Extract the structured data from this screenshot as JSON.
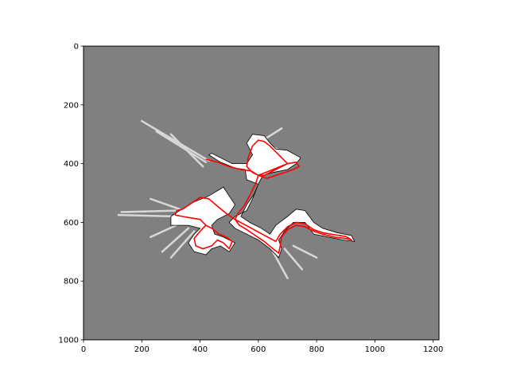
{
  "chart_data": {
    "type": "heatmap",
    "title": "",
    "xlabel": "",
    "ylabel": "",
    "xlim": [
      0,
      1220
    ],
    "ylim": [
      1000,
      0
    ],
    "y_inverted": true,
    "grid": false,
    "x_ticks": [
      0,
      200,
      400,
      600,
      800,
      1000,
      1200
    ],
    "y_ticks": [
      0,
      200,
      400,
      600,
      800,
      1000
    ],
    "background_value_color": "#808080",
    "free_space_color": "#ffffff",
    "obstacle_color": "#000000",
    "path_color": "#ff0000",
    "free_region": [
      [
        430,
        370
      ],
      [
        470,
        395
      ],
      [
        520,
        415
      ],
      [
        555,
        420
      ],
      [
        560,
        455
      ],
      [
        600,
        470
      ],
      [
        580,
        520
      ],
      [
        560,
        560
      ],
      [
        520,
        580
      ],
      [
        500,
        600
      ],
      [
        520,
        620
      ],
      [
        560,
        640
      ],
      [
        600,
        660
      ],
      [
        640,
        690
      ],
      [
        670,
        720
      ],
      [
        680,
        690
      ],
      [
        670,
        660
      ],
      [
        690,
        630
      ],
      [
        720,
        600
      ],
      [
        760,
        600
      ],
      [
        790,
        640
      ],
      [
        840,
        650
      ],
      [
        890,
        660
      ],
      [
        930,
        665
      ],
      [
        920,
        645
      ],
      [
        870,
        635
      ],
      [
        820,
        620
      ],
      [
        790,
        600
      ],
      [
        760,
        560
      ],
      [
        730,
        555
      ],
      [
        700,
        580
      ],
      [
        660,
        610
      ],
      [
        640,
        640
      ],
      [
        610,
        620
      ],
      [
        570,
        600
      ],
      [
        540,
        580
      ],
      [
        560,
        540
      ],
      [
        585,
        505
      ],
      [
        600,
        470
      ],
      [
        615,
        440
      ],
      [
        650,
        430
      ],
      [
        700,
        420
      ],
      [
        730,
        400
      ],
      [
        745,
        380
      ],
      [
        700,
        355
      ],
      [
        660,
        350
      ],
      [
        640,
        330
      ],
      [
        620,
        305
      ],
      [
        580,
        300
      ],
      [
        560,
        330
      ],
      [
        580,
        370
      ],
      [
        560,
        400
      ],
      [
        510,
        400
      ],
      [
        470,
        380
      ],
      [
        440,
        365
      ]
    ],
    "free_region_2": [
      [
        480,
        480
      ],
      [
        430,
        510
      ],
      [
        380,
        530
      ],
      [
        330,
        560
      ],
      [
        300,
        580
      ],
      [
        300,
        610
      ],
      [
        360,
        610
      ],
      [
        400,
        620
      ],
      [
        380,
        640
      ],
      [
        360,
        670
      ],
      [
        380,
        700
      ],
      [
        420,
        710
      ],
      [
        440,
        690
      ],
      [
        470,
        680
      ],
      [
        500,
        700
      ],
      [
        520,
        670
      ],
      [
        480,
        650
      ],
      [
        450,
        640
      ],
      [
        440,
        610
      ],
      [
        460,
        590
      ],
      [
        500,
        570
      ],
      [
        520,
        540
      ],
      [
        500,
        510
      ]
    ],
    "rays": [
      [
        [
          430,
          390
        ],
        [
          200,
          255
        ]
      ],
      [
        [
          420,
          395
        ],
        [
          250,
          290
        ]
      ],
      [
        [
          410,
          410
        ],
        [
          300,
          300
        ]
      ],
      [
        [
          320,
          560
        ],
        [
          130,
          565
        ]
      ],
      [
        [
          320,
          580
        ],
        [
          120,
          575
        ]
      ],
      [
        [
          330,
          555
        ],
        [
          230,
          520
        ]
      ],
      [
        [
          340,
          600
        ],
        [
          230,
          650
        ]
      ],
      [
        [
          360,
          620
        ],
        [
          270,
          700
        ]
      ],
      [
        [
          380,
          630
        ],
        [
          300,
          720
        ]
      ],
      [
        [
          650,
          700
        ],
        [
          700,
          790
        ]
      ],
      [
        [
          690,
          690
        ],
        [
          750,
          760
        ]
      ],
      [
        [
          720,
          680
        ],
        [
          800,
          720
        ]
      ],
      [
        [
          600,
          330
        ],
        [
          680,
          280
        ]
      ],
      [
        [
          640,
          340
        ],
        [
          730,
          380
        ]
      ],
      [
        [
          430,
          560
        ],
        [
          480,
          520
        ]
      ]
    ],
    "path": [
      [
        420,
        385
      ],
      [
        460,
        395
      ],
      [
        500,
        410
      ],
      [
        540,
        420
      ],
      [
        575,
        425
      ],
      [
        600,
        440
      ],
      [
        630,
        450
      ],
      [
        660,
        440
      ],
      [
        690,
        430
      ],
      [
        720,
        420
      ],
      [
        740,
        410
      ],
      [
        730,
        395
      ],
      [
        700,
        400
      ],
      [
        680,
        410
      ],
      [
        660,
        420
      ],
      [
        640,
        430
      ],
      [
        620,
        440
      ],
      [
        600,
        440
      ],
      [
        580,
        430
      ],
      [
        560,
        410
      ],
      [
        565,
        380
      ],
      [
        580,
        340
      ],
      [
        600,
        320
      ],
      [
        620,
        325
      ],
      [
        640,
        340
      ],
      [
        660,
        360
      ],
      [
        680,
        380
      ],
      [
        700,
        400
      ],
      [
        600,
        440
      ],
      [
        590,
        470
      ],
      [
        570,
        510
      ],
      [
        550,
        545
      ],
      [
        530,
        570
      ],
      [
        520,
        590
      ],
      [
        535,
        610
      ],
      [
        560,
        625
      ],
      [
        590,
        645
      ],
      [
        620,
        665
      ],
      [
        650,
        690
      ],
      [
        670,
        705
      ],
      [
        675,
        680
      ],
      [
        680,
        650
      ],
      [
        700,
        625
      ],
      [
        730,
        610
      ],
      [
        760,
        615
      ],
      [
        790,
        630
      ],
      [
        820,
        640
      ],
      [
        860,
        650
      ],
      [
        900,
        655
      ],
      [
        920,
        660
      ],
      [
        900,
        648
      ],
      [
        860,
        642
      ],
      [
        820,
        635
      ],
      [
        790,
        625
      ],
      [
        760,
        605
      ],
      [
        730,
        600
      ],
      [
        700,
        615
      ],
      [
        675,
        640
      ],
      [
        660,
        665
      ],
      [
        520,
        590
      ],
      [
        490,
        570
      ],
      [
        460,
        545
      ],
      [
        430,
        520
      ],
      [
        400,
        515
      ],
      [
        370,
        535
      ],
      [
        340,
        555
      ],
      [
        320,
        560
      ],
      [
        315,
        575
      ],
      [
        340,
        580
      ],
      [
        370,
        585
      ],
      [
        400,
        590
      ],
      [
        420,
        610
      ],
      [
        400,
        630
      ],
      [
        380,
        655
      ],
      [
        385,
        680
      ],
      [
        410,
        690
      ],
      [
        440,
        680
      ],
      [
        460,
        660
      ],
      [
        480,
        670
      ],
      [
        500,
        690
      ],
      [
        510,
        665
      ],
      [
        490,
        650
      ],
      [
        465,
        640
      ],
      [
        440,
        620
      ],
      [
        420,
        610
      ]
    ]
  }
}
